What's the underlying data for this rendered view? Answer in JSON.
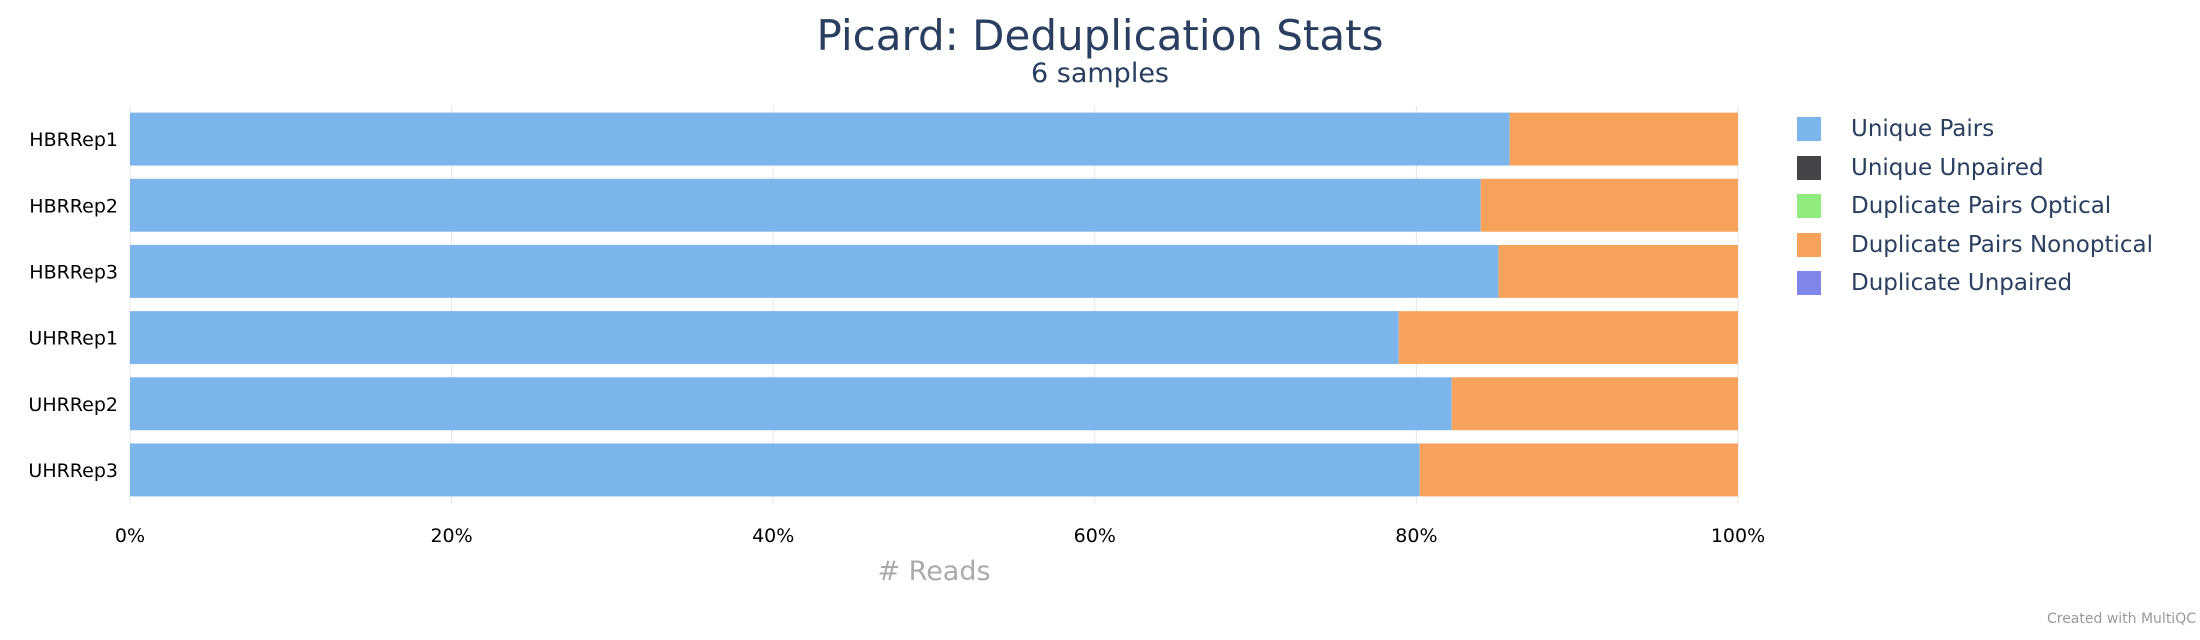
{
  "chart_data": {
    "type": "bar",
    "orientation": "horizontal",
    "stacked": true,
    "normalized_percent": true,
    "title": "Picard: Deduplication Stats",
    "subtitle": "6 samples",
    "xlabel": "# Reads",
    "categories": [
      "HBRRep1",
      "HBRRep2",
      "HBRRep3",
      "UHRRep1",
      "UHRRep2",
      "UHRRep3"
    ],
    "xlim": [
      0,
      100
    ],
    "xticks": [
      "0%",
      "20%",
      "40%",
      "60%",
      "80%",
      "100%"
    ],
    "series": [
      {
        "name": "Unique Pairs",
        "color": "#7cb5ec",
        "values": [
          85.8,
          84.0,
          85.1,
          78.9,
          82.2,
          80.2
        ]
      },
      {
        "name": "Unique Unpaired",
        "color": "#434348",
        "values": [
          0,
          0,
          0,
          0,
          0,
          0
        ]
      },
      {
        "name": "Duplicate Pairs Optical",
        "color": "#90ed7d",
        "values": [
          0,
          0,
          0,
          0,
          0,
          0
        ]
      },
      {
        "name": "Duplicate Pairs Nonoptical",
        "color": "#f7a35c",
        "values": [
          14.2,
          16.0,
          14.9,
          21.1,
          17.8,
          19.8
        ]
      },
      {
        "name": "Duplicate Unpaired",
        "color": "#8085e9",
        "values": [
          0,
          0,
          0,
          0,
          0,
          0
        ]
      }
    ],
    "legend_position": "right",
    "grid": true
  },
  "credit": "Created with MultiQC"
}
